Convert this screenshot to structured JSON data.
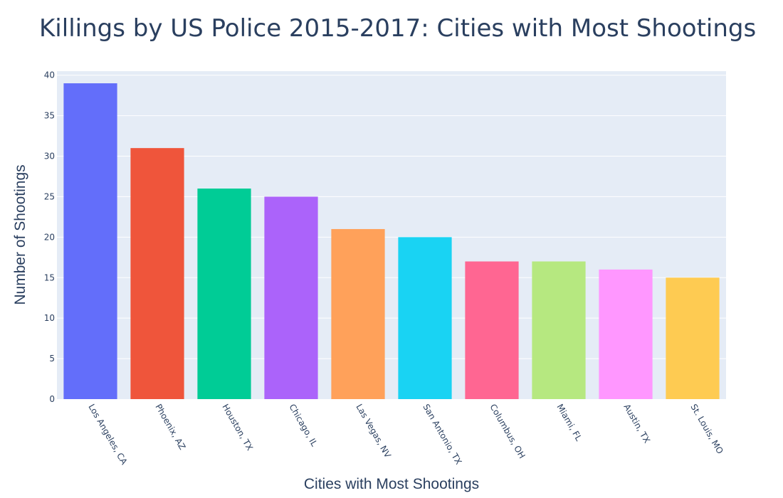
{
  "chart_data": {
    "type": "bar",
    "title": "Killings by US Police 2015-2017: Cities with Most Shootings",
    "xlabel": "Cities with Most Shootings",
    "ylabel": "Number of Shootings",
    "categories": [
      "Los Angeles, CA",
      "Phoenix, AZ",
      "Houston, TX",
      "Chicago, IL",
      "Las Vegas, NV",
      "San Antonio, TX",
      "Columbus, OH",
      "Miami, FL",
      "Austin, TX",
      "St. Louis, MO"
    ],
    "values": [
      39,
      31,
      26,
      25,
      21,
      20,
      17,
      17,
      16,
      15
    ],
    "colors": [
      "#636efa",
      "#ef553b",
      "#00cc96",
      "#ab63fa",
      "#ffa15a",
      "#19d3f3",
      "#ff6692",
      "#b6e880",
      "#ff97ff",
      "#fecb52"
    ],
    "ylim": [
      0,
      40.5
    ],
    "yticks": [
      0,
      5,
      10,
      15,
      20,
      25,
      30,
      35,
      40
    ],
    "grid": true,
    "legend": false,
    "plot_background": "#e5ecf6",
    "text_color": "#2a3f5f"
  }
}
